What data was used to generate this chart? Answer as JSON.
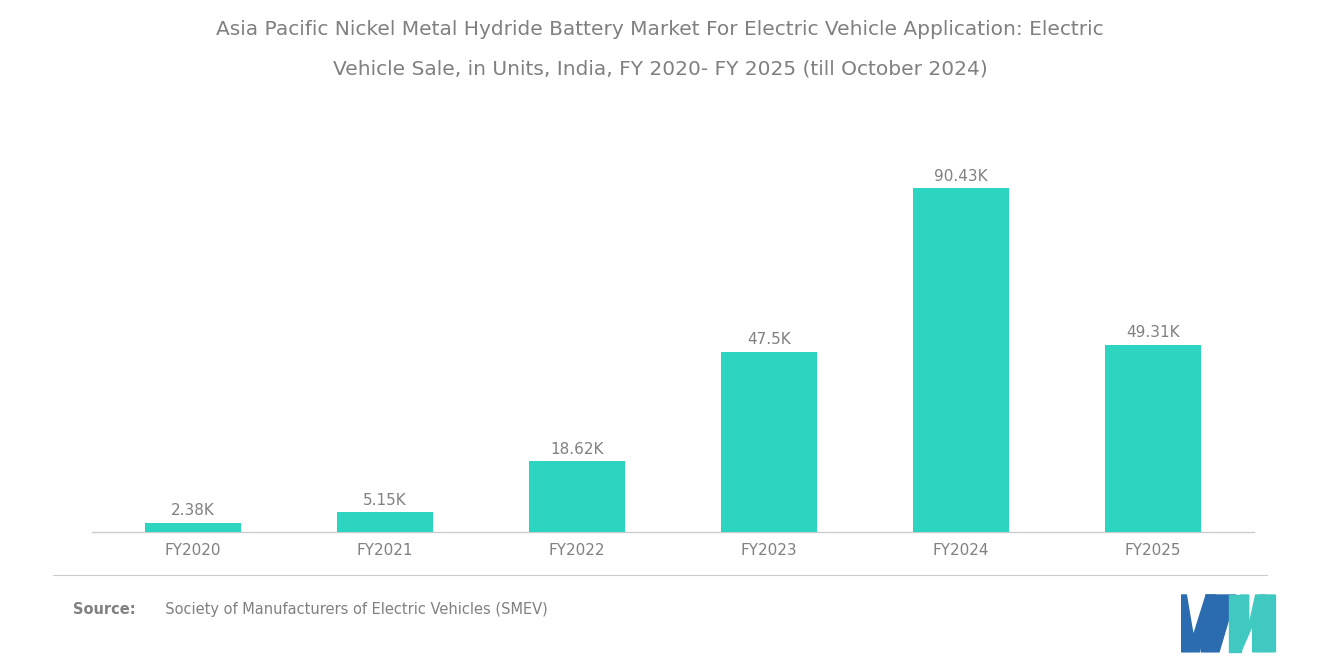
{
  "title_line1": "Asia Pacific Nickel Metal Hydride Battery Market For Electric Vehicle Application: Electric",
  "title_line2": "Vehicle Sale, in Units, India, FY 2020- FY 2025 (till October 2024)",
  "categories": [
    "FY2020",
    "FY2021",
    "FY2022",
    "FY2023",
    "FY2024",
    "FY2025"
  ],
  "values": [
    2380,
    5150,
    18620,
    47500,
    90430,
    49310
  ],
  "labels": [
    "2.38K",
    "5.15K",
    "18.62K",
    "47.5K",
    "90.43K",
    "49.31K"
  ],
  "bar_color": "#2DD4BF",
  "background_color": "#ffffff",
  "title_fontsize": 14.5,
  "label_fontsize": 11,
  "tick_fontsize": 11,
  "ylim": [
    0,
    105000
  ],
  "source_bold": "Source:",
  "source_normal": "  Society of Manufacturers of Electric Vehicles (SMEV)",
  "logo_blue": "#2B6CB0",
  "logo_teal": "#40C9C0",
  "separator_color": "#cccccc",
  "text_color": "#808080"
}
